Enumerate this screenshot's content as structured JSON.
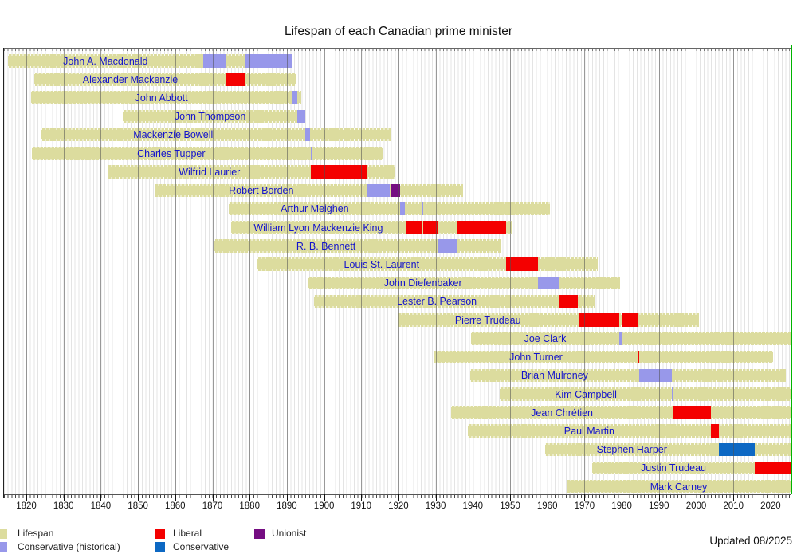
{
  "title": "Lifespan of each Canadian prime minister",
  "updated": "Updated 08/2025",
  "colors": {
    "lifespan": "#dcdc9e",
    "conservative_historical": "#9898ea",
    "liberal": "#f40000",
    "conservative": "#0d68c3",
    "unionist": "#750d82",
    "current_line": "#00b400",
    "name_text": "#1414cc",
    "grid_year": "#e4e4e4",
    "grid_decade": "#707070"
  },
  "legend": {
    "items": [
      {
        "label": "Lifespan",
        "key": "lifespan"
      },
      {
        "label": "Conservative (historical)",
        "key": "conservative_historical"
      },
      {
        "label": "Liberal",
        "key": "liberal"
      },
      {
        "label": "Conservative",
        "key": "conservative"
      },
      {
        "label": "Unionist",
        "key": "unionist"
      }
    ]
  },
  "chart_data": {
    "type": "timeline",
    "title": "Lifespan of each Canadian prime minister",
    "xlim": [
      1814.0,
      2025.6
    ],
    "current_year": 2025.6,
    "tick_years": [
      1820,
      1830,
      1840,
      1850,
      1860,
      1870,
      1880,
      1890,
      1900,
      1910,
      1920,
      1930,
      1940,
      1950,
      1960,
      1970,
      1980,
      1990,
      2000,
      2010,
      2020
    ],
    "tick_labels": [
      "1820",
      "1830",
      "1840",
      "1850",
      "1860",
      "1870",
      "1880",
      "1890",
      "1900",
      "1910",
      "1920",
      "1930",
      "1940",
      "1950",
      "1960",
      "1970",
      "1980",
      "1990",
      "2000",
      "2010",
      "2020"
    ],
    "pms": [
      {
        "name": "John A. Macdonald",
        "born": 1815.04,
        "died": 1891.43,
        "terms": [
          {
            "party": "conservative_historical",
            "from": 1867.5,
            "to": 1873.84
          },
          {
            "party": "conservative_historical",
            "from": 1878.79,
            "to": 1891.43
          }
        ]
      },
      {
        "name": "Alexander Mackenzie",
        "born": 1822.06,
        "died": 1892.3,
        "terms": [
          {
            "party": "liberal",
            "from": 1873.84,
            "to": 1878.79
          }
        ]
      },
      {
        "name": "John Abbott",
        "born": 1821.19,
        "died": 1893.82,
        "terms": [
          {
            "party": "conservative_historical",
            "from": 1891.46,
            "to": 1892.91
          }
        ]
      },
      {
        "name": "John Thompson",
        "born": 1845.86,
        "died": 1894.92,
        "terms": [
          {
            "party": "conservative_historical",
            "from": 1892.92,
            "to": 1894.92
          }
        ]
      },
      {
        "name": "Mackenzie Bowell",
        "born": 1823.96,
        "died": 1917.94,
        "terms": [
          {
            "party": "conservative_historical",
            "from": 1894.97,
            "to": 1896.35
          }
        ]
      },
      {
        "name": "Charles Tupper",
        "born": 1821.5,
        "died": 1915.82,
        "terms": [
          {
            "party": "conservative_historical",
            "from": 1896.35,
            "to": 1896.52
          }
        ]
      },
      {
        "name": "Wilfrid Laurier",
        "born": 1841.88,
        "died": 1919.13,
        "terms": [
          {
            "party": "liberal",
            "from": 1896.54,
            "to": 1911.76
          }
        ]
      },
      {
        "name": "Robert Borden",
        "born": 1854.49,
        "died": 1937.45,
        "terms": [
          {
            "party": "conservative_historical",
            "from": 1911.76,
            "to": 1917.78
          },
          {
            "party": "unionist",
            "from": 1917.78,
            "to": 1920.52
          }
        ]
      },
      {
        "name": "Arthur Meighen",
        "born": 1874.46,
        "died": 1960.61,
        "terms": [
          {
            "party": "conservative_historical",
            "from": 1920.53,
            "to": 1921.7
          },
          {
            "party": "conservative_historical",
            "from": 1926.49,
            "to": 1926.71
          }
        ]
      },
      {
        "name": "William Lyon Mackenzie King",
        "born": 1874.96,
        "died": 1950.55,
        "terms": [
          {
            "party": "liberal",
            "from": 1921.99,
            "to": 1926.49
          },
          {
            "party": "liberal",
            "from": 1926.71,
            "to": 1930.59
          },
          {
            "party": "liberal",
            "from": 1935.8,
            "to": 1948.87
          }
        ]
      },
      {
        "name": "R. B. Bennett",
        "born": 1870.51,
        "died": 1947.49,
        "terms": [
          {
            "party": "conservative_historical",
            "from": 1930.59,
            "to": 1935.8
          }
        ]
      },
      {
        "name": "Louis St. Laurent",
        "born": 1882.09,
        "died": 1973.56,
        "terms": [
          {
            "party": "liberal",
            "from": 1948.87,
            "to": 1957.46
          }
        ]
      },
      {
        "name": "John Diefenbaker",
        "born": 1895.7,
        "died": 1979.62,
        "terms": [
          {
            "party": "conservative_historical",
            "from": 1957.46,
            "to": 1963.3
          }
        ]
      },
      {
        "name": "Lester B. Pearson",
        "born": 1897.31,
        "died": 1972.98,
        "terms": [
          {
            "party": "liberal",
            "from": 1963.3,
            "to": 1968.3
          }
        ]
      },
      {
        "name": "Pierre Trudeau",
        "born": 1919.79,
        "died": 2000.74,
        "terms": [
          {
            "party": "liberal",
            "from": 1968.3,
            "to": 1979.42
          },
          {
            "party": "liberal",
            "from": 1980.17,
            "to": 1984.49
          }
        ]
      },
      {
        "name": "Joe Clark",
        "born": 1939.42,
        "died": null,
        "terms": [
          {
            "party": "conservative_historical",
            "from": 1979.42,
            "to": 1980.17
          }
        ]
      },
      {
        "name": "John Turner",
        "born": 1929.44,
        "died": 2020.72,
        "terms": [
          {
            "party": "liberal",
            "from": 1984.49,
            "to": 1984.72
          }
        ]
      },
      {
        "name": "Brian Mulroney",
        "born": 1939.2,
        "died": 2024.16,
        "terms": [
          {
            "party": "conservative_historical",
            "from": 1984.72,
            "to": 1993.48
          }
        ]
      },
      {
        "name": "Kim Campbell",
        "born": 1947.21,
        "died": null,
        "terms": [
          {
            "party": "conservative_historical",
            "from": 1993.48,
            "to": 1993.84
          }
        ]
      },
      {
        "name": "Jean Chrétien",
        "born": 1934.03,
        "died": null,
        "terms": [
          {
            "party": "liberal",
            "from": 1993.84,
            "to": 2003.92
          }
        ]
      },
      {
        "name": "Paul Martin",
        "born": 1938.66,
        "died": null,
        "terms": [
          {
            "party": "liberal",
            "from": 2003.92,
            "to": 2006.09
          }
        ]
      },
      {
        "name": "Stephen Harper",
        "born": 1959.33,
        "died": null,
        "terms": [
          {
            "party": "conservative",
            "from": 2006.09,
            "to": 2015.84
          }
        ]
      },
      {
        "name": "Justin Trudeau",
        "born": 1971.97,
        "died": null,
        "terms": [
          {
            "party": "liberal",
            "from": 2015.84,
            "to": null
          }
        ]
      },
      {
        "name": "Mark Carney",
        "born": 1965.2,
        "died": null,
        "terms": []
      }
    ]
  }
}
